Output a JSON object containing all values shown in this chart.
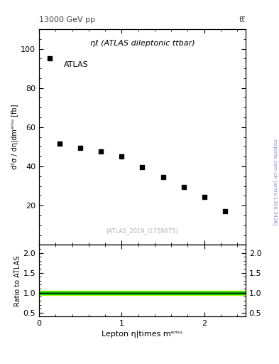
{
  "title_left": "13000 GeV pp",
  "title_right": "tt̅",
  "annotation": "ηℓ (ATLAS dileptonic ttbar)",
  "ref_label": "(ATLAS_2019_I1759875)",
  "atlas_label": "ATLAS",
  "ylabel_main": "d²σ / dη|dmᵉᵐᵘ [fb]",
  "ylabel_ratio": "Ratio to ATLAS",
  "xlabel": "Lepton η|times mᵉᵐᵘ",
  "xlim": [
    0,
    2.5
  ],
  "ylim_main": [
    0,
    110
  ],
  "ylim_ratio": [
    0.4,
    2.2
  ],
  "yticks_main": [
    20,
    40,
    60,
    80,
    100
  ],
  "yticks_ratio": [
    0.5,
    1.0,
    1.5,
    2.0
  ],
  "xticks": [
    0,
    1,
    2
  ],
  "data_x": [
    0.125,
    0.25,
    0.5,
    0.75,
    1.0,
    1.25,
    1.5,
    1.75,
    2.0,
    2.25
  ],
  "data_y": [
    95.0,
    51.5,
    49.5,
    47.5,
    45.0,
    39.5,
    34.5,
    29.5,
    24.5,
    17.0
  ],
  "marker_color": "black",
  "marker_size": 5,
  "ratio_line_y": 1.0,
  "ratio_band_green_lo": 0.968,
  "ratio_band_green_hi": 1.032,
  "ratio_band_yellow_lo": 0.945,
  "ratio_band_yellow_hi": 1.055,
  "band_green_color": "#00cc00",
  "band_yellow_color": "#ccff00",
  "background_color": "white",
  "side_text": "mcplots.cern.ch [arXiv:1306.3436]",
  "side_text_color": "#8888cc"
}
